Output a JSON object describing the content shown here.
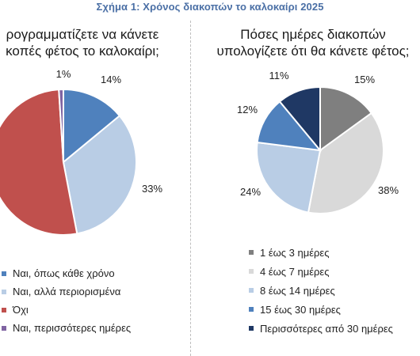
{
  "figure_title": "Σχήμα 1: Χρόνος διακοπών το καλοκαίρι 2025",
  "chart_data": [
    {
      "type": "pie",
      "title": "Προγραμματίζετε να κάνετε διακοπές φέτος το καλοκαίρι;",
      "title_lines": [
        "ρογραμματίζετε να κάνετε",
        "κοπές φέτος το καλοκαίρι;"
      ],
      "categories": [
        "Ναι, όπως κάθε χρόνο",
        "Ναι, αλλά περιορισμένα",
        "Όχι",
        "Ναι, περισσότερες ημέρες"
      ],
      "values": [
        14,
        33,
        52,
        1
      ],
      "value_labels": [
        "14%",
        "33%",
        "",
        "1%"
      ],
      "colors": [
        "#4f81bd",
        "#b9cde5",
        "#c0504d",
        "#8064a2"
      ],
      "legend_placement": "bottom"
    },
    {
      "type": "pie",
      "title": "Πόσες ημέρες διακοπών υπολογίζετε ότι θα κάνετε φέτος;",
      "title_lines": [
        "Πόσες ημέρες διακοπών",
        "υπολογίζετε ότι θα κάνετε φέτος;"
      ],
      "categories": [
        "1 έως 3 ημέρες",
        "4 έως 7 ημέρες",
        "8 έως 14 ημέρες",
        "15 έως 30 ημέρες",
        "Περισσότερες από 30 ημέρες"
      ],
      "values": [
        15,
        38,
        24,
        12,
        11
      ],
      "value_labels": [
        "15%",
        "38%",
        "24%",
        "12%",
        "11%"
      ],
      "colors": [
        "#7f7f7f",
        "#d9d9d9",
        "#b9cde5",
        "#4f81bd",
        "#1f3864"
      ],
      "legend_placement": "bottom"
    }
  ]
}
